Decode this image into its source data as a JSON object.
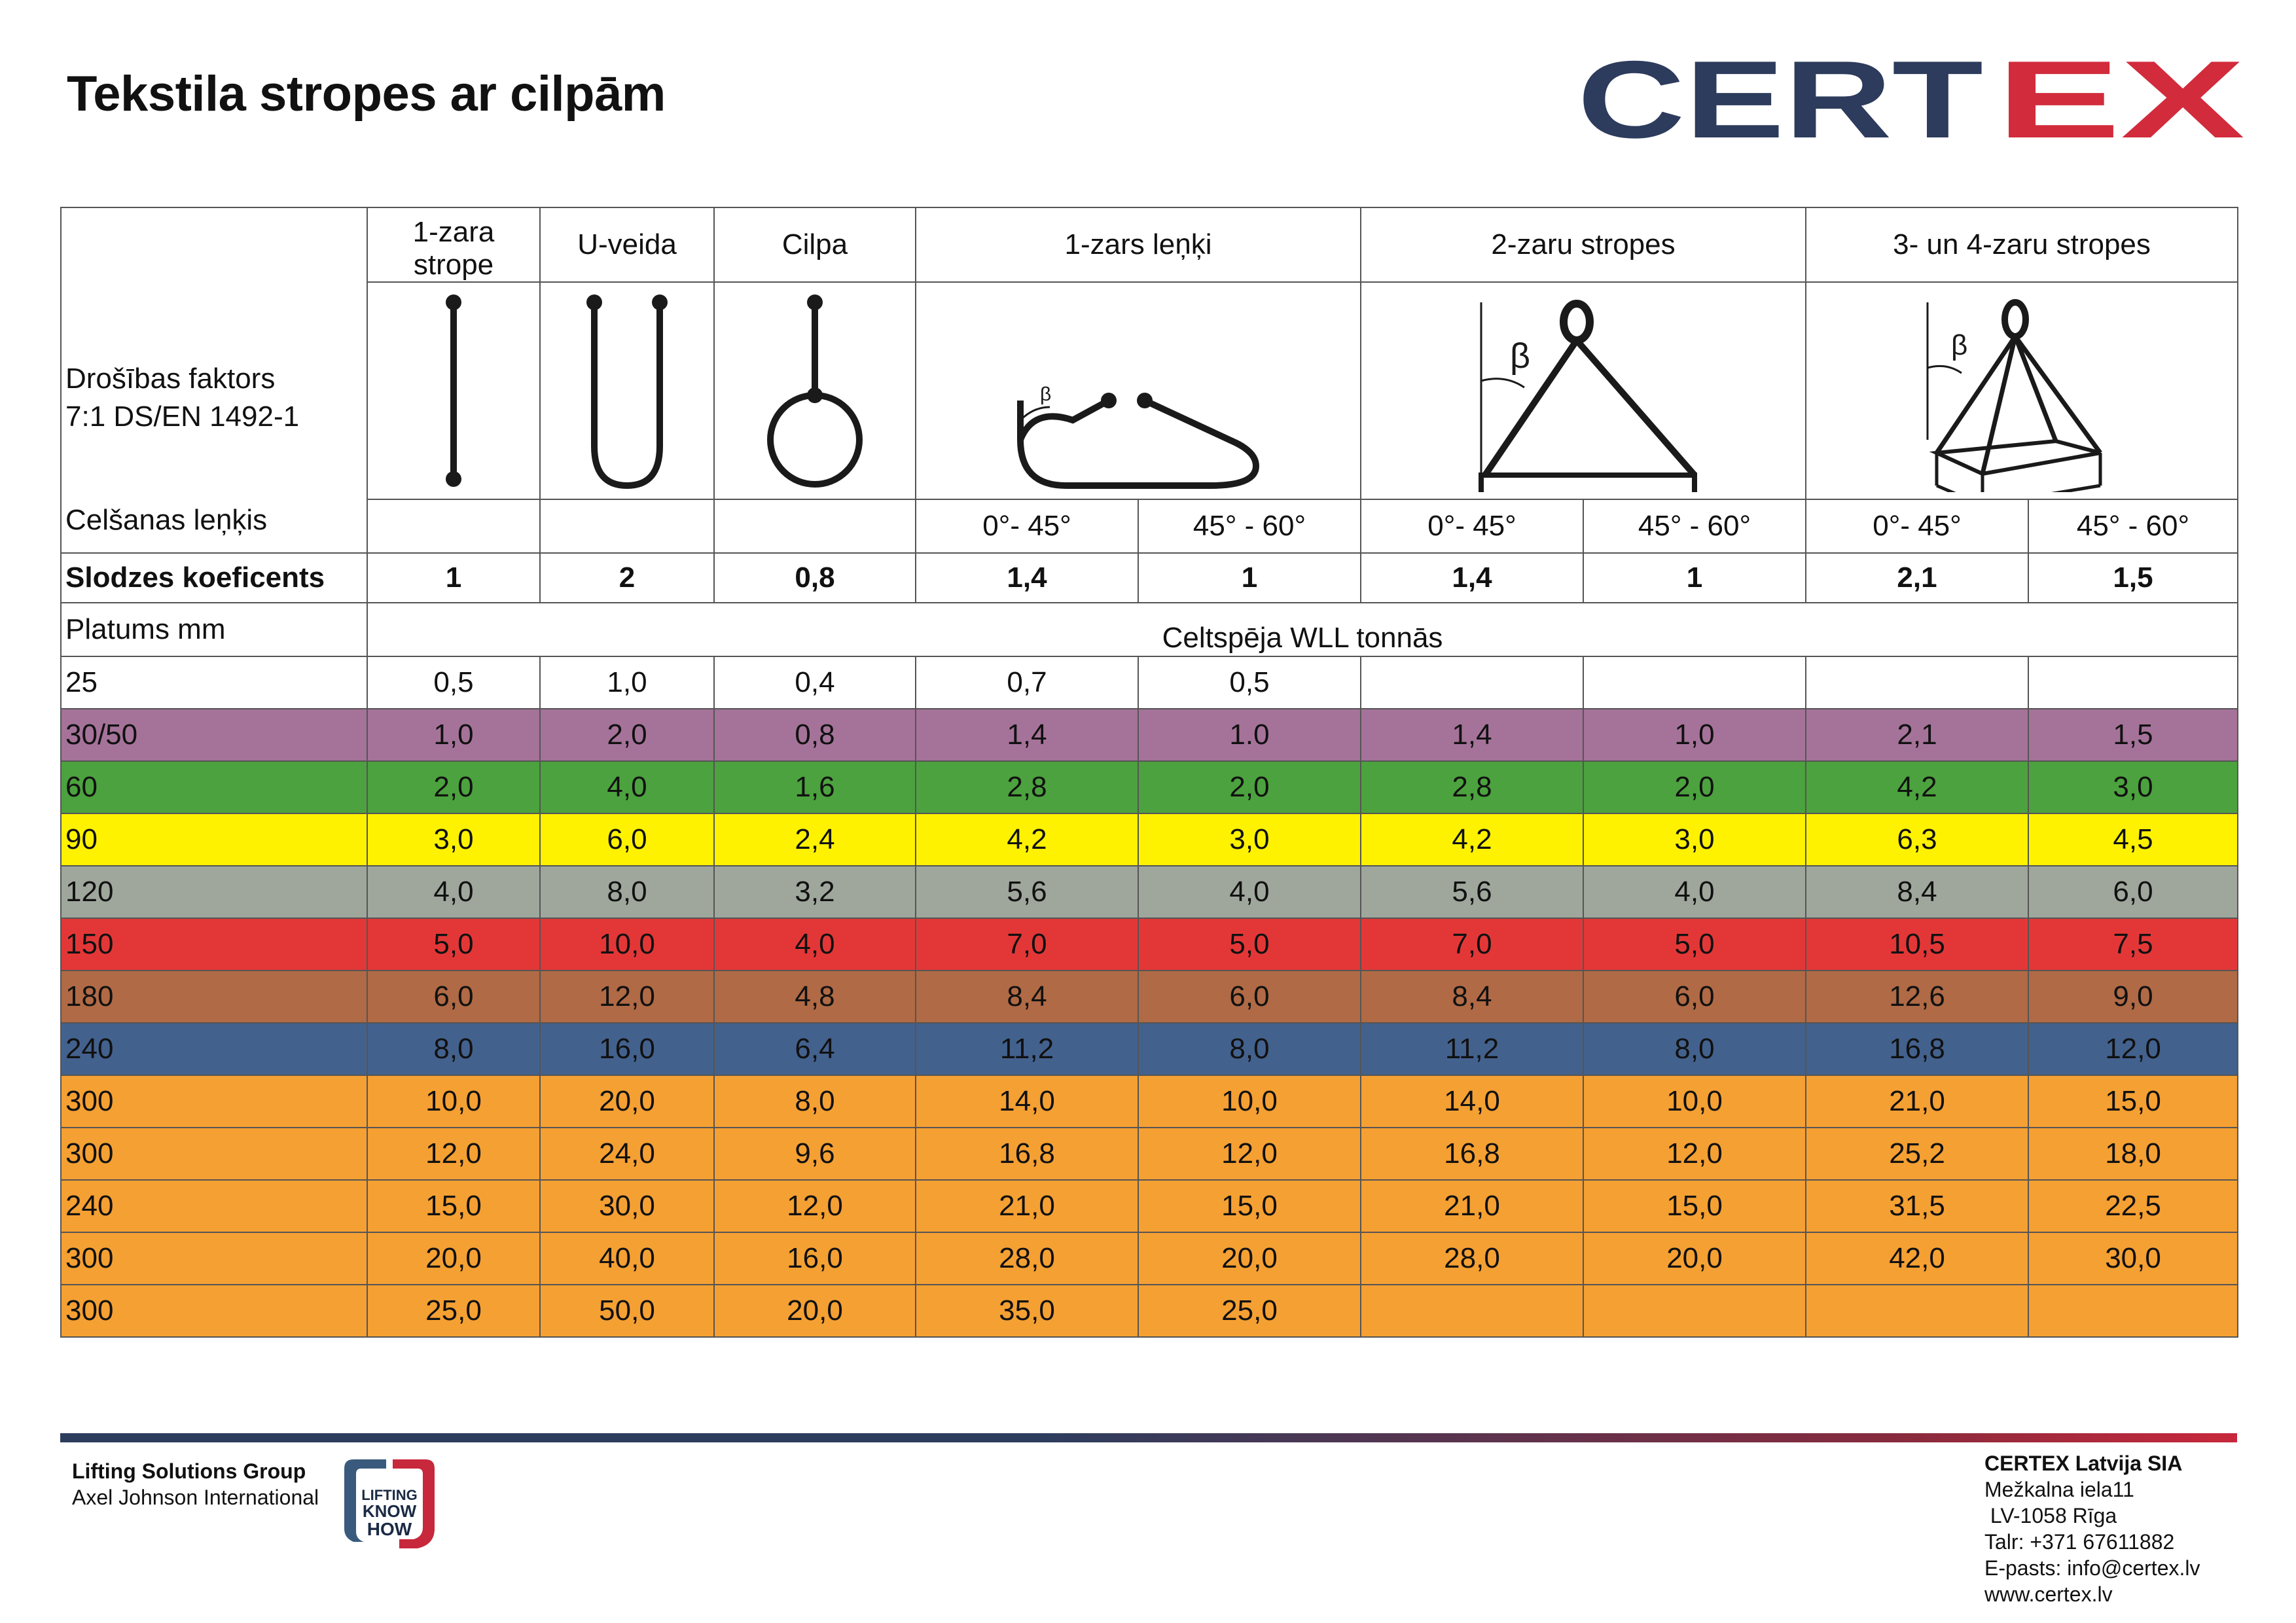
{
  "title": "Tekstila stropes ar cilpām",
  "logo": {
    "text_left": "CERT",
    "text_right": "EX",
    "color_left": "#2d3b5c",
    "color_right": "#d12b3c"
  },
  "header": {
    "description_line1": "Drošības faktors",
    "description_line2": "7:1 DS/EN 1492-1",
    "lift_angle_label": "Celšanas leņķis",
    "coef_label": "Slodzes koeficents",
    "width_label": "Platums mm",
    "wll_label": "Celtspēja WLL tonnās",
    "columns": [
      "1-zara strope",
      "U-veida",
      "Cilpa",
      "1-zars leņķi",
      "2-zaru stropes",
      "3- un 4-zaru stropes"
    ],
    "angles": [
      "0°- 45°",
      "45° - 60°",
      "0°- 45°",
      "45° - 60°",
      "0°- 45°",
      "45° - 60°"
    ],
    "beta": "β",
    "coefficients": [
      "1",
      "2",
      "0,8",
      "1,4",
      "1",
      "1,4",
      "1",
      "2,1",
      "1,5"
    ]
  },
  "rows": [
    {
      "width": "25",
      "color": "#ffffff",
      "values": [
        "0,5",
        "1,0",
        "0,4",
        "0,7",
        "0,5",
        "",
        "",
        "",
        ""
      ]
    },
    {
      "width": "30/50",
      "color": "#a57399",
      "values": [
        "1,0",
        "2,0",
        "0,8",
        "1,4",
        "1.0",
        "1,4",
        "1,0",
        "2,1",
        "1,5"
      ]
    },
    {
      "width": "60",
      "color": "#4ca23e",
      "values": [
        "2,0",
        "4,0",
        "1,6",
        "2,8",
        "2,0",
        "2,8",
        "2,0",
        "4,2",
        "3,0"
      ]
    },
    {
      "width": "90",
      "color": "#fff200",
      "values": [
        "3,0",
        "6,0",
        "2,4",
        "4,2",
        "3,0",
        "4,2",
        "3,0",
        "6,3",
        "4,5"
      ]
    },
    {
      "width": "120",
      "color": "#9fa79d",
      "values": [
        "4,0",
        "8,0",
        "3,2",
        "5,6",
        "4,0",
        "5,6",
        "4,0",
        "8,4",
        "6,0"
      ]
    },
    {
      "width": "150",
      "color": "#e33737",
      "values": [
        "5,0",
        "10,0",
        "4,0",
        "7,0",
        "5,0",
        "7,0",
        "5,0",
        "10,5",
        "7,5"
      ]
    },
    {
      "width": "180",
      "color": "#b06a45",
      "values": [
        "6,0",
        "12,0",
        "4,8",
        "8,4",
        "6,0",
        "8,4",
        "6,0",
        "12,6",
        "9,0"
      ]
    },
    {
      "width": "240",
      "color": "#43618d",
      "values": [
        "8,0",
        "16,0",
        "6,4",
        "11,2",
        "8,0",
        "11,2",
        "8,0",
        "16,8",
        "12,0"
      ]
    },
    {
      "width": "300",
      "color": "#f5a033",
      "values": [
        "10,0",
        "20,0",
        "8,0",
        "14,0",
        "10,0",
        "14,0",
        "10,0",
        "21,0",
        "15,0"
      ]
    },
    {
      "width": "300",
      "color": "#f5a033",
      "values": [
        "12,0",
        "24,0",
        "9,6",
        "16,8",
        "12,0",
        "16,8",
        "12,0",
        "25,2",
        "18,0"
      ]
    },
    {
      "width": "240",
      "color": "#f5a033",
      "values": [
        "15,0",
        "30,0",
        "12,0",
        "21,0",
        "15,0",
        "21,0",
        "15,0",
        "31,5",
        "22,5"
      ]
    },
    {
      "width": "300",
      "color": "#f5a033",
      "values": [
        "20,0",
        "40,0",
        "16,0",
        "28,0",
        "20,0",
        "28,0",
        "20,0",
        "42,0",
        "30,0"
      ]
    },
    {
      "width": "300",
      "color": "#f5a033",
      "values": [
        "25,0",
        "50,0",
        "20,0",
        "35,0",
        "25,0",
        "",
        "",
        "",
        ""
      ]
    }
  ],
  "footer": {
    "group_name": "Lifting Solutions Group",
    "group_sub": "Axel Johnson International",
    "badge": [
      "LIFTING",
      "KNOW",
      "HOW"
    ],
    "company": "CERTEX Latvija SIA",
    "address1": "Mežkalna iela11",
    "address2": " LV-1058 Rīga",
    "phone": "Talr: +371 67611882",
    "email": "E-pasts: info@certex.lv",
    "web": "www.certex.lv"
  }
}
